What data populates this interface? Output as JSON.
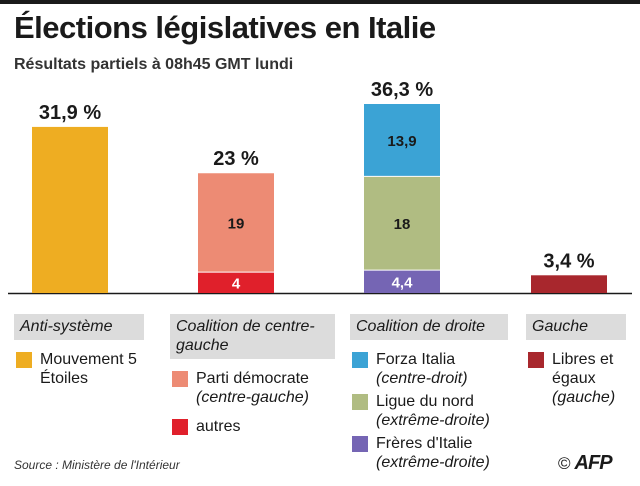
{
  "title": "Élections législatives en Italie",
  "subtitle": "Résultats partiels à 08h45 GMT lundi",
  "source": "Source : Ministère de l'Intérieur",
  "credit": {
    "symbol": "©",
    "logo": "AFP"
  },
  "chart_data": {
    "type": "bar",
    "stacked": true,
    "title": "Élections législatives en Italie",
    "subtitle": "Résultats partiels à 08h45 GMT lundi",
    "ylim": [
      0,
      36.3
    ],
    "grid": false,
    "categories": [
      "Anti-système",
      "Coalition de centre-gauche",
      "Coalition de droite",
      "Gauche"
    ],
    "totals": [
      31.9,
      23,
      36.3,
      3.4
    ],
    "total_labels": [
      "31,9 %",
      "23 %",
      "36,3 %",
      "3,4 %"
    ],
    "segments": [
      [
        {
          "name": "Mouvement 5 Étoiles",
          "value": 31.9,
          "label": "",
          "color": "#eead22"
        }
      ],
      [
        {
          "name": "autres",
          "value": 4,
          "label": "4",
          "color": "#e0202b"
        },
        {
          "name": "Parti démocrate",
          "value": 19,
          "label": "19",
          "color": "#ed8b74"
        }
      ],
      [
        {
          "name": "Frères d'Italie",
          "value": 4.4,
          "label": "4,4",
          "color": "#7565b4"
        },
        {
          "name": "Ligue du nord",
          "value": 18,
          "label": "18",
          "color": "#b0bc82"
        },
        {
          "name": "Forza Italia",
          "value": 13.9,
          "label": "13,9",
          "color": "#3ba3d5"
        }
      ],
      [
        {
          "name": "Libres et égaux",
          "value": 3.4,
          "label": "",
          "color": "#a8272d"
        }
      ]
    ]
  },
  "legend": [
    {
      "header": "Anti-système",
      "items": [
        {
          "label": "Mouvement 5 Étoiles",
          "sub": "",
          "color": "#eead22"
        }
      ]
    },
    {
      "header": "Coalition de centre-gauche",
      "items": [
        {
          "label": "Parti démocrate",
          "sub": "(centre-gauche)",
          "color": "#ed8b74"
        },
        {
          "label": "autres",
          "sub": "",
          "color": "#e0202b"
        }
      ]
    },
    {
      "header": "Coalition de droite",
      "items": [
        {
          "label": "Forza Italia",
          "sub": "(centre-droit)",
          "color": "#3ba3d5"
        },
        {
          "label": "Ligue du nord",
          "sub": "(extrême-droite)",
          "color": "#b0bc82"
        },
        {
          "label": "Frères d'Italie",
          "sub": "(extrême-droite)",
          "color": "#7565b4"
        }
      ]
    },
    {
      "header": "Gauche",
      "items": [
        {
          "label": "Libres et égaux",
          "sub": "(gauche)",
          "color": "#a8272d"
        }
      ]
    }
  ]
}
